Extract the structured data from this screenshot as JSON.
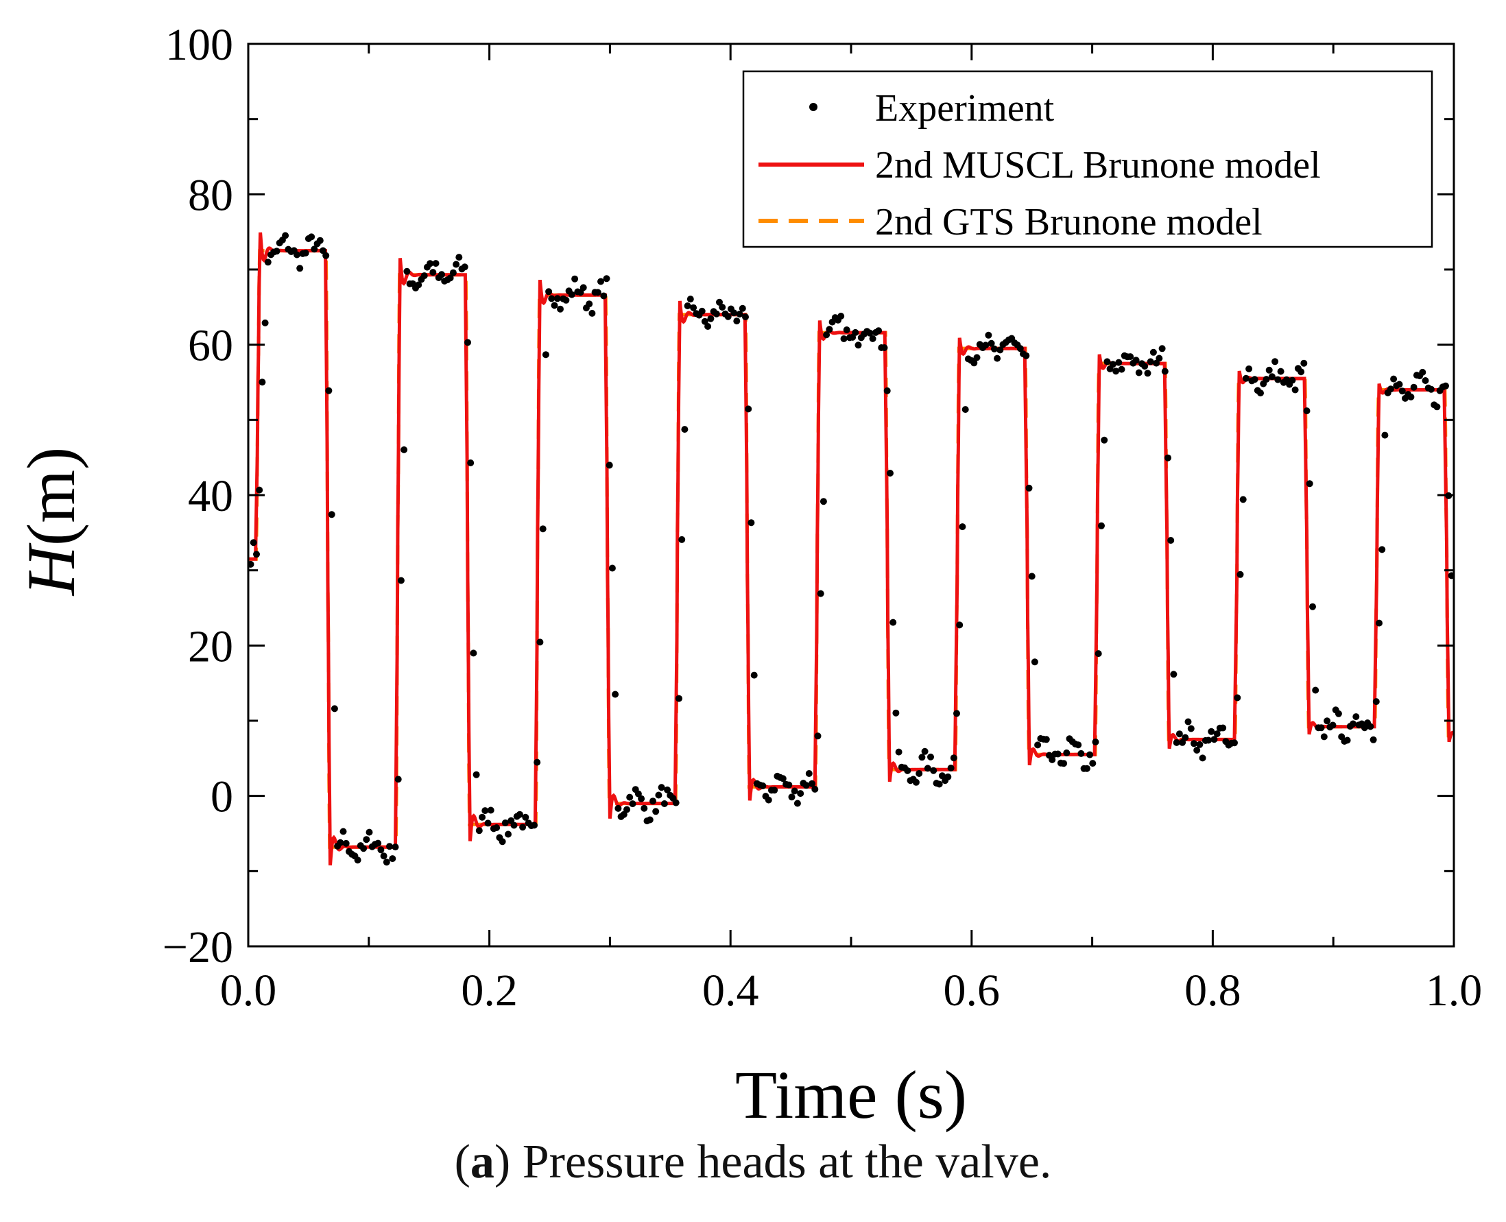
{
  "caption": {
    "label": "a",
    "text": "Pressure heads at the valve."
  },
  "chart_data": {
    "type": "line",
    "xlabel": "Time (s)",
    "ylabel_italic": "H",
    "ylabel_rest": "(m)",
    "xlim": [
      0.0,
      1.0
    ],
    "ylim": [
      -20,
      100
    ],
    "xticks": [
      "0.0",
      "0.2",
      "0.4",
      "0.6",
      "0.8",
      "1.0"
    ],
    "yticks": [
      "−20",
      "0",
      "20",
      "40",
      "60",
      "80",
      "100"
    ],
    "legend_position": "top-right",
    "grid": false,
    "legend": [
      {
        "label": "Experiment",
        "style": "dots",
        "color": "#000000"
      },
      {
        "label": "2nd MUSCL Brunone model",
        "style": "solid",
        "color": "#ee1111"
      },
      {
        "label": "2nd GTS Brunone model",
        "style": "dashed",
        "color": "#ff8c00"
      }
    ],
    "period_s": 0.116,
    "first_rise_s": 0.008,
    "plateaus": [
      {
        "t_start": 0.008,
        "high": 72.5,
        "low": -6.8
      },
      {
        "t_start": 0.124,
        "high": 69.3,
        "low": -3.8
      },
      {
        "t_start": 0.24,
        "high": 66.6,
        "low": -1.0
      },
      {
        "t_start": 0.356,
        "high": 64.0,
        "low": 1.2
      },
      {
        "t_start": 0.472,
        "high": 61.6,
        "low": 3.5
      },
      {
        "t_start": 0.588,
        "high": 59.5,
        "low": 5.5
      },
      {
        "t_start": 0.704,
        "high": 57.5,
        "low": 7.5
      },
      {
        "t_start": 0.82,
        "high": 55.5,
        "low": 9.2
      },
      {
        "t_start": 0.936,
        "high": 54.0,
        "low": 10.5
      }
    ],
    "initial_head": 31.5,
    "end_head": 8.0,
    "overshoot_peaks": [
      [
        0.009,
        73
      ],
      [
        0.071,
        -12.5
      ],
      [
        0.13,
        75.5
      ],
      [
        0.188,
        -10
      ],
      [
        0.246,
        72.5
      ],
      [
        0.304,
        -7
      ],
      [
        0.362,
        69.5
      ],
      [
        0.42,
        -3.8
      ],
      [
        0.478,
        66.5
      ],
      [
        0.536,
        -1
      ],
      [
        0.594,
        64
      ],
      [
        0.652,
        1.5
      ],
      [
        0.71,
        61.5
      ],
      [
        0.768,
        3.5
      ],
      [
        0.826,
        59.5
      ],
      [
        0.884,
        5.8
      ],
      [
        0.94,
        57.3
      ]
    ]
  }
}
